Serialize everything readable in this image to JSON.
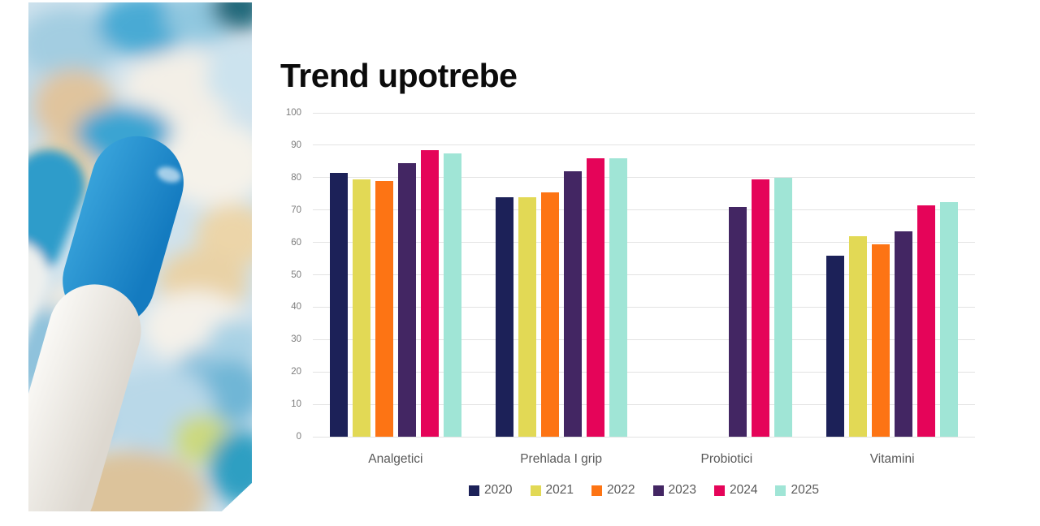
{
  "slide": {
    "left_image_alt": "Close-up photo of blue and white capsules and assorted blurred pills"
  },
  "chart_data": {
    "type": "bar",
    "title": "Trend upotrebe",
    "categories": [
      "Analgetici",
      "Prehlada I grip",
      "Probiotici",
      "Vitamini"
    ],
    "series": [
      {
        "name": "2020",
        "color": "#1C2158",
        "values": [
          81.5,
          74,
          null,
          56
        ]
      },
      {
        "name": "2021",
        "color": "#E2D955",
        "values": [
          79.5,
          74,
          null,
          62
        ]
      },
      {
        "name": "2022",
        "color": "#FD7414",
        "values": [
          79,
          75.5,
          null,
          59.5
        ]
      },
      {
        "name": "2023",
        "color": "#432663",
        "values": [
          84.5,
          82,
          71,
          63.5
        ]
      },
      {
        "name": "2024",
        "color": "#E50459",
        "values": [
          88.5,
          86,
          79.5,
          71.5
        ]
      },
      {
        "name": "2025",
        "color": "#A0E5D6",
        "values": [
          87.5,
          86,
          80,
          72.5
        ]
      }
    ],
    "ylim": [
      0,
      100
    ],
    "yticks": [
      0,
      10,
      20,
      30,
      40,
      50,
      60,
      70,
      80,
      90,
      100
    ],
    "grid": true,
    "legend_position": "bottom"
  }
}
